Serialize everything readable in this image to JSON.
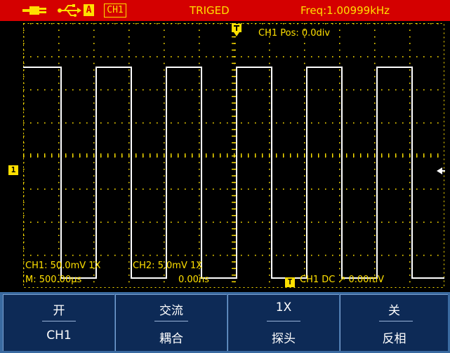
{
  "status_bar": {
    "source_badge": "A",
    "channel": "CH1",
    "trigger_state": "TRIGED",
    "frequency": "Freq:1.00999kHz"
  },
  "screen": {
    "ch1_pos": "CH1 Pos: 0.0div",
    "ch1_marker": "1",
    "ch1_info": "CH1: 50.0mV 1X",
    "ch2_info": "CH2: 5.0mV 1X",
    "timebase": "M: 500.00µs",
    "time_offset": "0.00ns",
    "trigger_info": "CH1 DC ↗ 0.00mV",
    "waveform_color": "#ffffff",
    "grid_color": "#ffe000"
  },
  "menu": [
    {
      "top": "开",
      "bottom": "CH1"
    },
    {
      "top": "交流",
      "bottom": "耦合"
    },
    {
      "top": "1X",
      "bottom": "探头"
    },
    {
      "top": "关",
      "bottom": "反相"
    }
  ]
}
